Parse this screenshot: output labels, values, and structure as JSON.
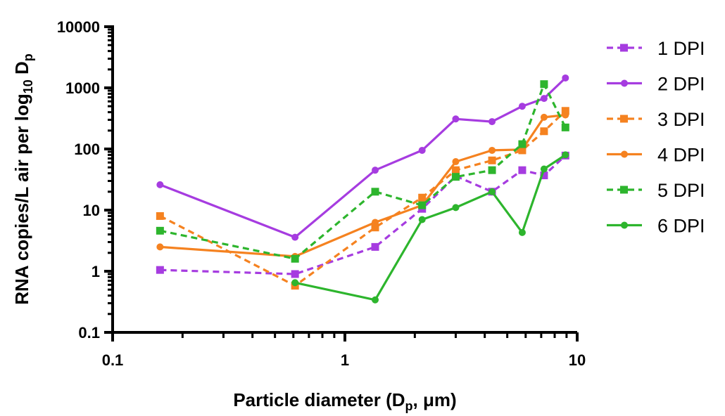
{
  "chart_data": {
    "type": "line",
    "x_scale": "log",
    "y_scale": "log",
    "xlim": [
      0.1,
      10
    ],
    "ylim": [
      0.1,
      10000
    ],
    "x_ticks": [
      {
        "value": 0.1,
        "label": "0.1"
      },
      {
        "value": 1,
        "label": "1"
      },
      {
        "value": 10,
        "label": "10"
      }
    ],
    "y_ticks": [
      {
        "value": 0.1,
        "label": "0.1"
      },
      {
        "value": 1,
        "label": "1"
      },
      {
        "value": 10,
        "label": "10"
      },
      {
        "value": 100,
        "label": "100"
      },
      {
        "value": 1000,
        "label": "1000"
      },
      {
        "value": 10000,
        "label": "10000"
      }
    ],
    "xlabel": "Particle diameter (D",
    "xlabel_sub": "p",
    "xlabel_end": ", μm)",
    "ylabel": "RNA copies/L air per log",
    "ylabel_sub": "10",
    "ylabel_mid": " D",
    "ylabel_sub2": "p",
    "grid": false,
    "legend_position": "right",
    "series": [
      {
        "name": "1 DPI",
        "color": "#a63ce0",
        "dashed": true,
        "marker": "square",
        "x": [
          0.16,
          0.61,
          1.35,
          2.15,
          3.0,
          4.3,
          5.8,
          7.2,
          8.9
        ],
        "y": [
          1.05,
          0.9,
          2.5,
          10.5,
          36,
          20,
          45,
          37,
          78
        ]
      },
      {
        "name": "2 DPI",
        "color": "#a63ce0",
        "dashed": false,
        "marker": "circle",
        "x": [
          0.16,
          0.61,
          1.35,
          2.15,
          3.0,
          4.3,
          5.8,
          7.2,
          8.9
        ],
        "y": [
          26,
          3.6,
          45,
          95,
          310,
          280,
          500,
          670,
          1450
        ]
      },
      {
        "name": "3 DPI",
        "color": "#f58220",
        "dashed": true,
        "marker": "square",
        "x": [
          0.16,
          0.61,
          1.35,
          2.15,
          3.0,
          4.3,
          5.8,
          7.2,
          8.9
        ],
        "y": [
          8.0,
          0.58,
          5.2,
          16,
          45,
          65,
          95,
          195,
          420
        ]
      },
      {
        "name": "4 DPI",
        "color": "#f58220",
        "dashed": false,
        "marker": "circle",
        "x": [
          0.16,
          0.61,
          1.35,
          2.15,
          3.0,
          4.3,
          5.8,
          7.2,
          8.9
        ],
        "y": [
          2.5,
          1.75,
          6.3,
          12,
          62,
          95,
          98,
          330,
          360
        ]
      },
      {
        "name": "5 DPI",
        "color": "#2db52d",
        "dashed": true,
        "marker": "square",
        "x": [
          0.16,
          0.61,
          1.35,
          2.15,
          3.0,
          4.3,
          5.8,
          7.2,
          8.9
        ],
        "y": [
          4.6,
          1.6,
          20,
          12,
          35,
          45,
          120,
          1150,
          225
        ]
      },
      {
        "name": "6 DPI",
        "color": "#2db52d",
        "dashed": false,
        "marker": "circle",
        "x": [
          0.61,
          1.35,
          2.15,
          3.0,
          4.3,
          5.8,
          7.2,
          8.9
        ],
        "y": [
          0.65,
          0.34,
          7.0,
          11,
          20,
          4.3,
          47,
          80
        ]
      }
    ]
  }
}
